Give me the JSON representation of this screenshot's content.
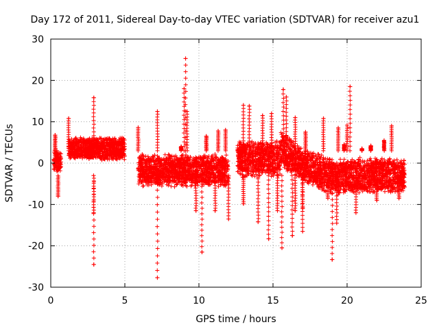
{
  "chart_data": {
    "type": "scatter",
    "title": "Day 172 of 2011, Sidereal Day-to-day VTEC variation (SDTVAR) for receiver azu1",
    "xlabel": "GPS time / hours",
    "ylabel": "SDTVAR / TECUs",
    "xlim": [
      0,
      25
    ],
    "ylim": [
      -30,
      30
    ],
    "xticks": [
      0,
      5,
      10,
      15,
      20,
      25
    ],
    "yticks": [
      -30,
      -20,
      -10,
      0,
      10,
      20,
      30
    ],
    "grid": true,
    "legend": "none",
    "marker": "+",
    "series_color": "#ff0000",
    "segments": [
      {
        "start": 0.2,
        "end": 0.7,
        "center": 0.5,
        "halfwidth": 2.8
      },
      {
        "start": 1.2,
        "end": 5.0,
        "center": 3.5,
        "halfwidth": 2.8
      },
      {
        "start": 5.9,
        "end": 12.0,
        "center": -1.8,
        "halfwidth": 4.0
      },
      {
        "start": 12.6,
        "end": 23.9,
        "center": -2.0,
        "halfwidth": 4.5
      }
    ],
    "outliers": [
      {
        "x": 2.9,
        "y": 15.8
      },
      {
        "x": 2.9,
        "y": -24.5
      },
      {
        "x": 2.9,
        "y": -12.0
      },
      {
        "x": 1.2,
        "y": 10.8
      },
      {
        "x": 0.3,
        "y": 6.8
      },
      {
        "x": 0.5,
        "y": -8.0
      },
      {
        "x": 5.9,
        "y": 8.6
      },
      {
        "x": 7.2,
        "y": 12.5
      },
      {
        "x": 7.2,
        "y": -27.7
      },
      {
        "x": 9.1,
        "y": 25.3
      },
      {
        "x": 9.2,
        "y": 12.5
      },
      {
        "x": 9.0,
        "y": 18.0
      },
      {
        "x": 10.2,
        "y": -21.5
      },
      {
        "x": 9.8,
        "y": -11.5
      },
      {
        "x": 10.5,
        "y": 6.5
      },
      {
        "x": 11.3,
        "y": 7.8
      },
      {
        "x": 11.1,
        "y": -11.5
      },
      {
        "x": 11.8,
        "y": 8.0
      },
      {
        "x": 13.0,
        "y": 14.0
      },
      {
        "x": 13.0,
        "y": -9.8
      },
      {
        "x": 13.4,
        "y": 13.8
      },
      {
        "x": 14.0,
        "y": -14.2
      },
      {
        "x": 14.3,
        "y": 11.5
      },
      {
        "x": 14.7,
        "y": -18.3
      },
      {
        "x": 15.3,
        "y": -11.5
      },
      {
        "x": 15.6,
        "y": -20.5
      },
      {
        "x": 15.7,
        "y": 17.8
      },
      {
        "x": 15.9,
        "y": 16.0
      },
      {
        "x": 16.3,
        "y": -17.5
      },
      {
        "x": 16.5,
        "y": -11.5
      },
      {
        "x": 16.5,
        "y": 11.0
      },
      {
        "x": 17.0,
        "y": -11.0
      },
      {
        "x": 17.0,
        "y": -16.5
      },
      {
        "x": 17.2,
        "y": 7.5
      },
      {
        "x": 19.0,
        "y": -23.3
      },
      {
        "x": 19.3,
        "y": -14.5
      },
      {
        "x": 19.4,
        "y": 8.5
      },
      {
        "x": 19.8,
        "y": 4.5
      },
      {
        "x": 20.0,
        "y": 9.2
      },
      {
        "x": 20.2,
        "y": 18.5
      },
      {
        "x": 20.6,
        "y": -12.0
      },
      {
        "x": 21.6,
        "y": 4.2
      },
      {
        "x": 22.0,
        "y": -9.0
      },
      {
        "x": 22.5,
        "y": 5.5
      },
      {
        "x": 23.0,
        "y": 9.0
      },
      {
        "x": 23.5,
        "y": -8.5
      },
      {
        "x": 23.6,
        "y": -4.5
      },
      {
        "x": 12.0,
        "y": -13.5
      },
      {
        "x": 14.9,
        "y": 12.0
      },
      {
        "x": 18.4,
        "y": 10.8
      },
      {
        "x": 18.7,
        "y": -8.5
      },
      {
        "x": 21.0,
        "y": 3.5
      },
      {
        "x": 8.8,
        "y": 4.0
      }
    ]
  }
}
